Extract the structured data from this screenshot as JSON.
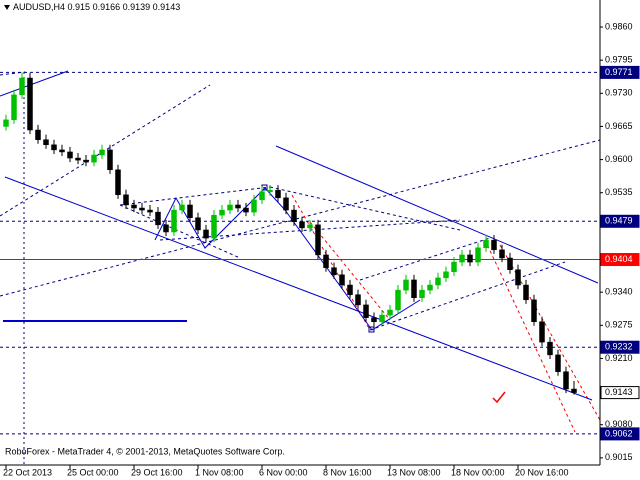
{
  "chart_data": {
    "type": "candlestick",
    "title": "AUDUSD,H4",
    "footer": "RoboForex - MetaTrader 4, © 2001-2013, MetaQuotes Software Corp.",
    "categories": [
      "22 Oct 2013",
      null,
      null,
      null,
      null,
      null,
      null,
      null,
      "25 Oct 00:00",
      null,
      null,
      null,
      null,
      null,
      null,
      null,
      "29 Oct 16:00",
      null,
      null,
      null,
      null,
      null,
      null,
      null,
      "1 Nov 08:00",
      null,
      null,
      null,
      null,
      null,
      null,
      null,
      "6 Nov 00:00",
      null,
      null,
      null,
      null,
      null,
      null,
      null,
      "8 Nov 16:00",
      null,
      null,
      null,
      null,
      null,
      null,
      null,
      "13 Nov 08:00",
      null,
      null,
      null,
      null,
      null,
      null,
      null,
      "18 Nov 00:00",
      null,
      null,
      null,
      null,
      null,
      null,
      null,
      "20 Nov 16:00",
      null,
      null,
      null,
      null,
      null,
      null,
      null
    ],
    "open": [
      0.9665,
      0.9678,
      0.9727,
      0.976,
      0.9658,
      0.9639,
      0.9629,
      0.9619,
      0.9615,
      0.9603,
      0.9599,
      0.9595,
      0.9609,
      0.9619,
      0.958,
      0.9531,
      0.9511,
      0.9505,
      0.9501,
      0.9497,
      0.9472,
      0.9458,
      0.9501,
      0.9511,
      0.9486,
      0.9462,
      0.9446,
      0.9491,
      0.9501,
      0.9511,
      0.9505,
      0.9497,
      0.9521,
      0.9537,
      0.954,
      0.9525,
      0.9501,
      0.9478,
      0.9466,
      0.9472,
      0.9413,
      0.9388,
      0.9374,
      0.9354,
      0.9335,
      0.9315,
      0.929,
      0.9282,
      0.9295,
      0.9305,
      0.9344,
      0.9364,
      0.9329,
      0.9344,
      0.9354,
      0.9368,
      0.938,
      0.9399,
      0.9413,
      0.9399,
      0.9427,
      0.9442,
      0.9423,
      0.9407,
      0.9384,
      0.9354,
      0.9325,
      0.9282,
      0.9242,
      0.9217,
      0.9184,
      0.915
    ],
    "high": [
      0.9688,
      0.9737,
      0.9771,
      0.977,
      0.9668,
      0.9649,
      0.9639,
      0.9629,
      0.9625,
      0.9613,
      0.9609,
      0.9619,
      0.9629,
      0.9629,
      0.959,
      0.9541,
      0.9521,
      0.9515,
      0.9511,
      0.9507,
      0.9482,
      0.9511,
      0.9521,
      0.9521,
      0.9496,
      0.9472,
      0.9501,
      0.9511,
      0.9521,
      0.9521,
      0.9515,
      0.9531,
      0.9547,
      0.955,
      0.955,
      0.9535,
      0.9511,
      0.9488,
      0.9482,
      0.9482,
      0.9423,
      0.9398,
      0.9384,
      0.9364,
      0.9345,
      0.9325,
      0.93,
      0.9305,
      0.9315,
      0.9354,
      0.9374,
      0.9374,
      0.9354,
      0.9364,
      0.9378,
      0.939,
      0.9409,
      0.9423,
      0.9423,
      0.9437,
      0.9452,
      0.9452,
      0.9433,
      0.9417,
      0.9394,
      0.9364,
      0.9335,
      0.9292,
      0.9252,
      0.9227,
      0.9194,
      0.9166
    ],
    "low": [
      0.9657,
      0.967,
      0.9719,
      0.965,
      0.9631,
      0.9621,
      0.9611,
      0.9607,
      0.9595,
      0.9591,
      0.9587,
      0.9587,
      0.9601,
      0.9572,
      0.9523,
      0.9503,
      0.9497,
      0.9493,
      0.9489,
      0.9464,
      0.945,
      0.945,
      0.9493,
      0.9478,
      0.9454,
      0.9438,
      0.9438,
      0.9483,
      0.9493,
      0.9497,
      0.9489,
      0.9489,
      0.9513,
      0.9529,
      0.9517,
      0.9493,
      0.947,
      0.9458,
      0.9458,
      0.9405,
      0.938,
      0.9366,
      0.9346,
      0.9327,
      0.9307,
      0.9282,
      0.927,
      0.9274,
      0.9287,
      0.9297,
      0.9336,
      0.9321,
      0.9321,
      0.9336,
      0.9346,
      0.936,
      0.9372,
      0.9391,
      0.9391,
      0.9391,
      0.9419,
      0.9415,
      0.9399,
      0.9376,
      0.9346,
      0.9317,
      0.9274,
      0.9234,
      0.9209,
      0.9176,
      0.9142,
      0.9139
    ],
    "close": [
      0.9678,
      0.9727,
      0.976,
      0.9658,
      0.9639,
      0.9629,
      0.9619,
      0.9615,
      0.9603,
      0.9599,
      0.9595,
      0.9609,
      0.9619,
      0.958,
      0.9531,
      0.9511,
      0.9505,
      0.9501,
      0.9497,
      0.9472,
      0.9458,
      0.9501,
      0.9511,
      0.9486,
      0.9462,
      0.9446,
      0.9491,
      0.9501,
      0.9511,
      0.9505,
      0.9497,
      0.9521,
      0.9537,
      0.954,
      0.9525,
      0.9501,
      0.9478,
      0.9466,
      0.9472,
      0.9413,
      0.9388,
      0.9374,
      0.9354,
      0.9335,
      0.9315,
      0.929,
      0.9282,
      0.9295,
      0.9305,
      0.9344,
      0.9364,
      0.9329,
      0.9344,
      0.9354,
      0.9368,
      0.938,
      0.9399,
      0.9413,
      0.9399,
      0.9427,
      0.9442,
      0.9423,
      0.9407,
      0.9384,
      0.9354,
      0.9325,
      0.9282,
      0.9242,
      0.9217,
      0.9184,
      0.915,
      0.9143
    ],
    "up_color": "#00c000",
    "down_color": "#000000",
    "ylim": [
      0.9001,
      0.9913
    ],
    "yticks": [
      {
        "value": 0.986,
        "label": "0.9860"
      },
      0.9795,
      {
        "value": 0.973,
        "label": "0.9730"
      },
      0.9665,
      {
        "value": 0.96,
        "label": "0.9600"
      },
      0.9535,
      {
        "value": 0.934,
        "label": "0.9340"
      },
      0.9275,
      {
        "value": 0.921,
        "label": "0.9210"
      },
      {
        "value": 0.908,
        "label": "0.9080"
      },
      0.9015
    ],
    "levels": [
      {
        "value": 0.9771,
        "color": "#000080",
        "style": "dashed"
      },
      {
        "value": 0.9479,
        "color": "#000080",
        "style": "dashed"
      },
      {
        "value": 0.9404,
        "color": "#ff0000",
        "style": "solid"
      },
      {
        "value": 0.9232,
        "color": "#000080",
        "style": "dashed"
      },
      {
        "value": 0.9143,
        "color": "#ffffff",
        "style": "current"
      },
      {
        "value": 0.9062,
        "color": "#000080",
        "style": "dashed"
      }
    ]
  }
}
